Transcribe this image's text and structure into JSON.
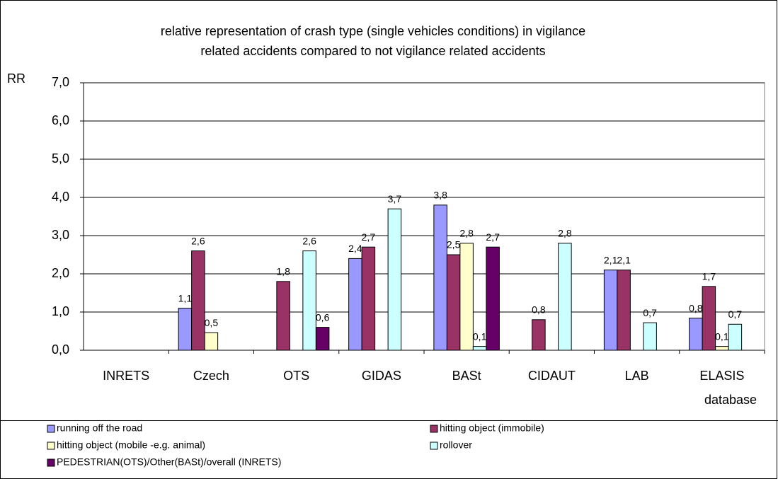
{
  "chart_data": {
    "type": "bar",
    "title": [
      "relative representation of crash type (single vehicles conditions) in vigilance",
      "related accidents compared to not vigilance related accidents"
    ],
    "y_label": "RR",
    "x_label": "database",
    "categories": [
      "INRETS",
      "Czech",
      "OTS",
      "GIDAS",
      "BASt",
      "CIDAUT",
      "LAB",
      "ELASIS"
    ],
    "series": [
      {
        "name": "running off the road",
        "color": "#9999ff",
        "values": [
          null,
          1.1,
          null,
          2.4,
          3.8,
          null,
          2.1,
          0.84
        ],
        "value_labels": [
          null,
          "1,1",
          null,
          "2,4",
          "3,8",
          null,
          "2,1",
          "0,8"
        ]
      },
      {
        "name": "hitting object (immobile)",
        "color": "#993366",
        "values": [
          null,
          2.6,
          1.8,
          2.7,
          2.5,
          0.8,
          2.1,
          1.67
        ],
        "value_labels": [
          null,
          "2,6",
          "1,8",
          "2,7",
          "2,5",
          "0,8",
          "2,1",
          "1,7"
        ]
      },
      {
        "name": "hitting object (mobile -e.g. animal)",
        "color": "#ffffcc",
        "values": [
          null,
          0.46,
          null,
          null,
          2.8,
          null,
          null,
          0.1
        ],
        "value_labels": [
          null,
          "0,5",
          null,
          null,
          "2,8",
          null,
          null,
          "0,1"
        ]
      },
      {
        "name": "rollover",
        "color": "#ccffff",
        "values": [
          null,
          null,
          2.6,
          3.7,
          0.1,
          2.8,
          0.72,
          0.68
        ],
        "value_labels": [
          null,
          null,
          "2,6",
          "3,7",
          "0,1",
          "2,8",
          "0,7",
          "0,7"
        ]
      },
      {
        "name": "PEDESTRIAN(OTS)/Other(BASt)/overall (INRETS)",
        "color": "#660066",
        "values": [
          null,
          null,
          0.6,
          null,
          2.7,
          null,
          null,
          null
        ],
        "value_labels": [
          null,
          null,
          "0,6",
          null,
          "2,7",
          null,
          null,
          null
        ]
      }
    ],
    "ylim": [
      0,
      7
    ],
    "yticks": [
      {
        "value": 0,
        "label": "0,0"
      },
      {
        "value": 1,
        "label": "1,0"
      },
      {
        "value": 2,
        "label": "2,0"
      },
      {
        "value": 3,
        "label": "3,0"
      },
      {
        "value": 4,
        "label": "4,0"
      },
      {
        "value": 5,
        "label": "5,0"
      },
      {
        "value": 6,
        "label": "6,0"
      },
      {
        "value": 7,
        "label": "7,0"
      }
    ],
    "grid": true
  }
}
